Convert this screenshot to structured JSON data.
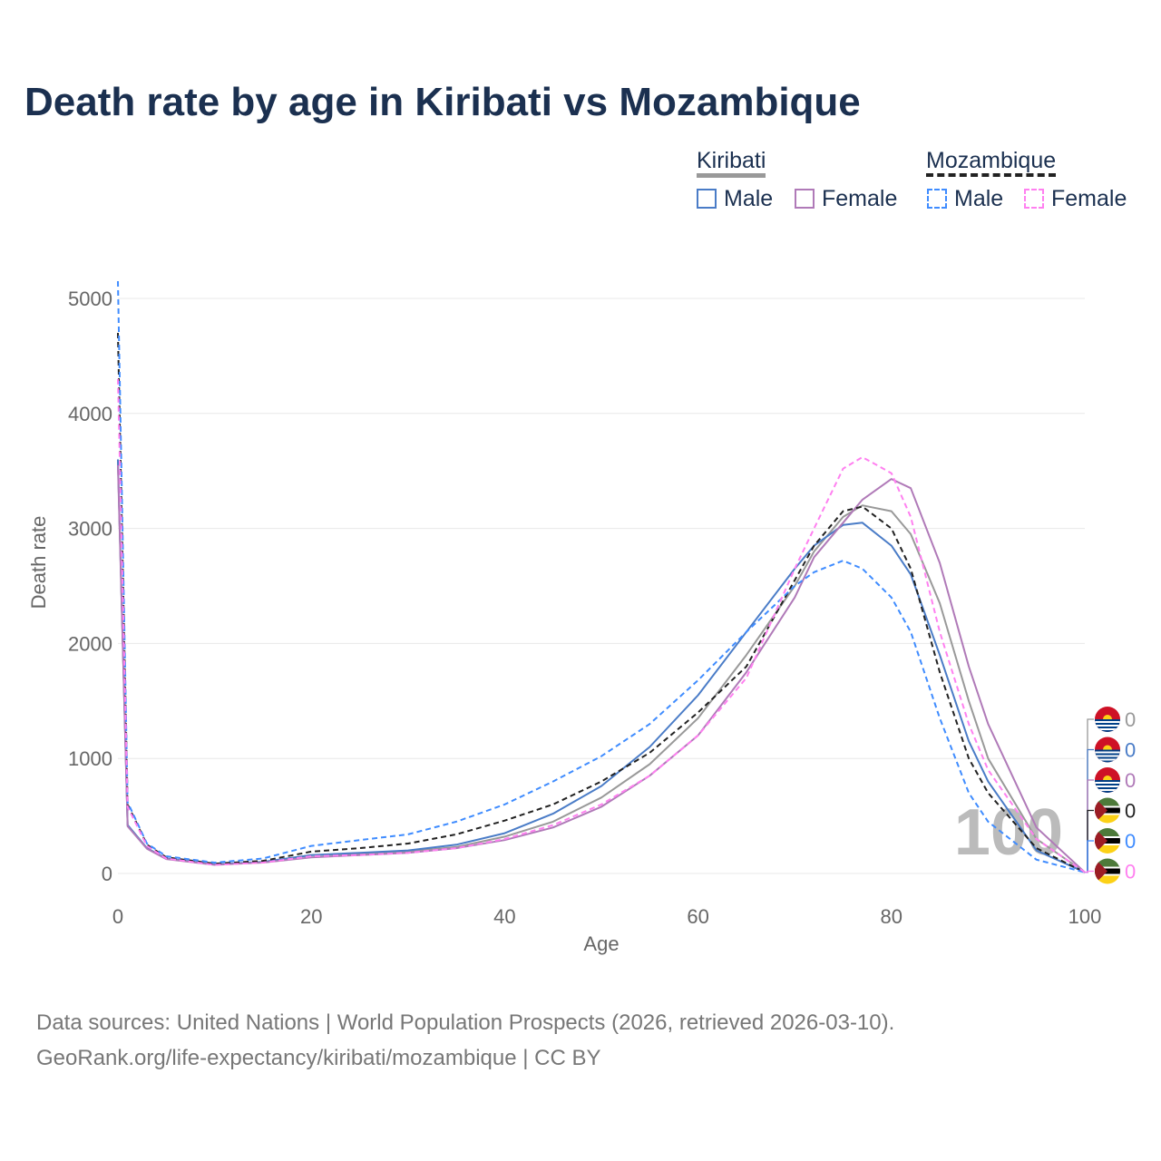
{
  "title": "Death rate by age in Kiribati vs Mozambique",
  "legend": {
    "group1": "Kiribati",
    "group2": "Mozambique",
    "male": "Male",
    "female": "Female"
  },
  "source": [
    "Data sources: United Nations | World Population Prospects (2026, retrieved 2026-03-10).",
    "GeoRank.org/life-expectancy/kiribati/mozambique | CC BY"
  ],
  "watermark": "100",
  "chart_data": {
    "type": "line",
    "title": "Death rate by age in Kiribati vs Mozambique",
    "xlabel": "Age",
    "ylabel": "Death rate",
    "xlim": [
      0,
      100
    ],
    "ylim": [
      0,
      5000
    ],
    "xticks": [
      "0",
      "20",
      "40",
      "60",
      "80",
      "100"
    ],
    "yticks": [
      "0",
      "1000",
      "2000",
      "3000",
      "4000",
      "5000"
    ],
    "grid": true,
    "x": [
      0,
      1,
      3,
      5,
      10,
      15,
      20,
      25,
      30,
      35,
      40,
      45,
      50,
      55,
      60,
      65,
      70,
      72,
      75,
      77,
      80,
      82,
      85,
      88,
      90,
      95,
      100
    ],
    "series": [
      {
        "name": "Kiribati",
        "color": "#999999",
        "dash": false,
        "end_label": "0",
        "flag": "kiribati",
        "values": [
          3600,
          420,
          220,
          130,
          80,
          100,
          160,
          170,
          190,
          230,
          320,
          450,
          660,
          950,
          1350,
          1900,
          2500,
          2800,
          3100,
          3200,
          3150,
          2950,
          2350,
          1500,
          1000,
          300,
          10
        ]
      },
      {
        "name": "Kiribati Male",
        "color": "#4a7cc7",
        "dash": false,
        "end_label": "0",
        "flag": "kiribati",
        "values": [
          3600,
          420,
          220,
          130,
          80,
          100,
          160,
          180,
          200,
          250,
          350,
          520,
          760,
          1100,
          1550,
          2100,
          2650,
          2850,
          3030,
          3050,
          2850,
          2600,
          1900,
          1150,
          800,
          200,
          10
        ]
      },
      {
        "name": "Kiribati Female",
        "color": "#b07ab8",
        "dash": false,
        "end_label": "0",
        "flag": "kiribati",
        "values": [
          3550,
          410,
          215,
          125,
          75,
          95,
          140,
          160,
          180,
          220,
          290,
          400,
          580,
          850,
          1200,
          1750,
          2400,
          2750,
          3050,
          3250,
          3430,
          3350,
          2700,
          1800,
          1300,
          400,
          10
        ]
      },
      {
        "name": "Mozambique",
        "color": "#222222",
        "dash": true,
        "end_label": "0",
        "flag": "mozambique",
        "values": [
          4700,
          600,
          250,
          140,
          85,
          110,
          190,
          220,
          260,
          340,
          460,
          600,
          800,
          1050,
          1400,
          1800,
          2550,
          2850,
          3150,
          3190,
          3000,
          2650,
          1750,
          1000,
          700,
          220,
          10
        ]
      },
      {
        "name": "Mozambique Male",
        "color": "#3f8cff",
        "dash": true,
        "end_label": "0",
        "flag": "mozambique",
        "values": [
          5150,
          620,
          260,
          150,
          95,
          130,
          240,
          290,
          340,
          450,
          600,
          800,
          1020,
          1300,
          1680,
          2100,
          2500,
          2620,
          2720,
          2650,
          2400,
          2100,
          1350,
          700,
          450,
          120,
          10
        ]
      },
      {
        "name": "Mozambique Female",
        "color": "#ff80f0",
        "dash": true,
        "end_label": "0",
        "flag": "mozambique",
        "values": [
          4300,
          580,
          240,
          130,
          75,
          95,
          150,
          160,
          180,
          220,
          300,
          420,
          600,
          850,
          1200,
          1700,
          2650,
          3000,
          3520,
          3620,
          3480,
          3100,
          2100,
          1300,
          900,
          300,
          10
        ]
      }
    ]
  }
}
